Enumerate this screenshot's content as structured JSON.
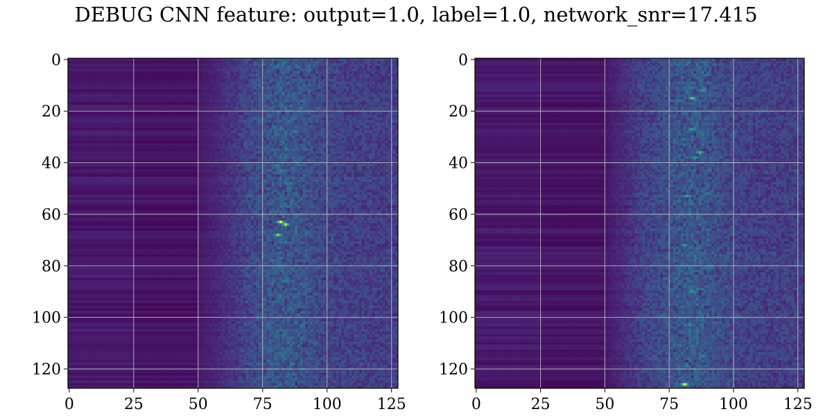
{
  "title": "DEBUG CNN feature: output=1.0, label=1.0, network_snr=17.415",
  "chart_data": [
    {
      "type": "heatmap",
      "colormap": "viridis",
      "rows": 128,
      "cols": 128,
      "xlim": [
        0,
        128
      ],
      "ylim": [
        128,
        0
      ],
      "xticks": [
        "0",
        "25",
        "50",
        "75",
        "100",
        "125"
      ],
      "yticks": [
        "0",
        "20",
        "40",
        "60",
        "80",
        "100",
        "120"
      ],
      "grid": true,
      "dark_band_end_col": 50,
      "noise_onset_col": 60,
      "hot_spots": [
        {
          "row": 63,
          "col": 82,
          "value": 1.0
        },
        {
          "row": 64,
          "col": 84,
          "value": 0.95
        },
        {
          "row": 68,
          "col": 81,
          "value": 0.9
        },
        {
          "row": 43,
          "col": 82,
          "value": 0.6
        },
        {
          "row": 48,
          "col": 86,
          "value": 0.55
        },
        {
          "row": 86,
          "col": 84,
          "value": 0.55
        },
        {
          "row": 27,
          "col": 82,
          "value": 0.5
        },
        {
          "row": 3,
          "col": 85,
          "value": 0.45
        },
        {
          "row": 16,
          "col": 80,
          "value": 0.4
        },
        {
          "row": 109,
          "col": 85,
          "value": 0.45
        },
        {
          "row": 103,
          "col": 81,
          "value": 0.4
        },
        {
          "row": 91,
          "col": 82,
          "value": 0.4
        }
      ]
    },
    {
      "type": "heatmap",
      "colormap": "viridis",
      "rows": 128,
      "cols": 128,
      "xlim": [
        0,
        128
      ],
      "ylim": [
        128,
        0
      ],
      "xticks": [
        "0",
        "25",
        "50",
        "75",
        "100",
        "125"
      ],
      "yticks": [
        "0",
        "20",
        "40",
        "60",
        "80",
        "100",
        "120"
      ],
      "grid": true,
      "dark_band_end_col": 50,
      "noise_onset_col": 55,
      "hot_spots": [
        {
          "row": 126,
          "col": 81,
          "value": 1.0
        },
        {
          "row": 15,
          "col": 84,
          "value": 0.85
        },
        {
          "row": 36,
          "col": 87,
          "value": 0.8
        },
        {
          "row": 27,
          "col": 84,
          "value": 0.75
        },
        {
          "row": 53,
          "col": 82,
          "value": 0.75
        },
        {
          "row": 12,
          "col": 88,
          "value": 0.7
        },
        {
          "row": 90,
          "col": 84,
          "value": 0.7
        },
        {
          "row": 72,
          "col": 81,
          "value": 0.65
        },
        {
          "row": 38,
          "col": 85,
          "value": 0.65
        },
        {
          "row": 103,
          "col": 83,
          "value": 0.6
        },
        {
          "row": 115,
          "col": 88,
          "value": 0.6
        },
        {
          "row": 119,
          "col": 82,
          "value": 0.55
        },
        {
          "row": 52,
          "col": 90,
          "value": 0.55
        },
        {
          "row": 82,
          "col": 84,
          "value": 0.5
        },
        {
          "row": 96,
          "col": 80,
          "value": 0.5
        },
        {
          "row": 31,
          "col": 81,
          "value": 0.5
        }
      ]
    }
  ]
}
